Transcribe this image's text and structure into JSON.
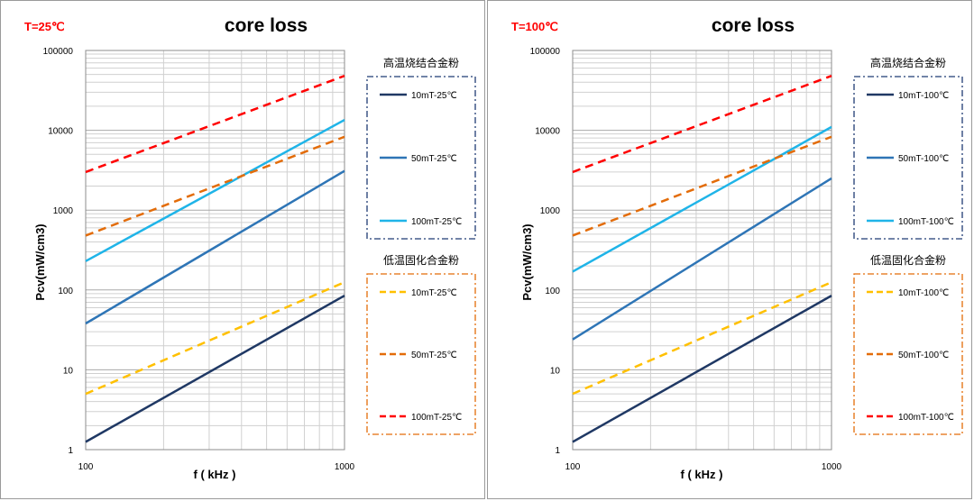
{
  "chart_data": [
    {
      "type": "line",
      "temperature_label": "T=25℃",
      "title": "core loss",
      "xlabel": "f ( kHz )",
      "ylabel": "Pcv(mW/cm3)",
      "xscale": "log",
      "yscale": "log",
      "xlim": [
        100,
        1000
      ],
      "ylim": [
        1,
        100000
      ],
      "x_ticks": [
        "100",
        "1000"
      ],
      "y_ticks": [
        "1",
        "10",
        "100",
        "1000",
        "10000",
        "100000"
      ],
      "grid": true,
      "legend_groups": [
        {
          "title": "高温烧结合金粉",
          "border_color": "#1f3b73",
          "series_indices": [
            0,
            1,
            2
          ]
        },
        {
          "title": "低温固化合金粉",
          "border_color": "#e36c09",
          "series_indices": [
            3,
            4,
            5
          ]
        }
      ],
      "series": [
        {
          "name": "10mT-25℃",
          "color": "#1f3864",
          "dash": "solid",
          "x": [
            100,
            1000
          ],
          "y": [
            1.25,
            85
          ]
        },
        {
          "name": "50mT-25℃",
          "color": "#2e75b6",
          "dash": "solid",
          "x": [
            100,
            1000
          ],
          "y": [
            38,
            3100
          ]
        },
        {
          "name": "100mT-25℃",
          "color": "#1fb4e8",
          "dash": "solid",
          "x": [
            100,
            1000
          ],
          "y": [
            230,
            13500
          ]
        },
        {
          "name": "10mT-25℃",
          "color": "#ffc000",
          "dash": "dashed",
          "x": [
            100,
            1000
          ],
          "y": [
            5,
            125
          ]
        },
        {
          "name": "50mT-25℃",
          "color": "#e36c09",
          "dash": "dashed",
          "x": [
            100,
            1000
          ],
          "y": [
            480,
            8300
          ]
        },
        {
          "name": "100mT-25℃",
          "color": "#ff0000",
          "dash": "dashed",
          "x": [
            100,
            1000
          ],
          "y": [
            3000,
            48000
          ]
        }
      ]
    },
    {
      "type": "line",
      "temperature_label": "T=100℃",
      "title": "core loss",
      "xlabel": "f ( kHz )",
      "ylabel": "Pcv(mW/cm3)",
      "xscale": "log",
      "yscale": "log",
      "xlim": [
        100,
        1000
      ],
      "ylim": [
        1,
        100000
      ],
      "x_ticks": [
        "100",
        "1000"
      ],
      "y_ticks": [
        "1",
        "10",
        "100",
        "1000",
        "10000",
        "100000"
      ],
      "grid": true,
      "legend_groups": [
        {
          "title": "高温烧结合金粉",
          "border_color": "#1f3b73",
          "series_indices": [
            0,
            1,
            2
          ]
        },
        {
          "title": "低温固化合金粉",
          "border_color": "#e36c09",
          "series_indices": [
            3,
            4,
            5
          ]
        }
      ],
      "series": [
        {
          "name": "10mT-100℃",
          "color": "#1f3864",
          "dash": "solid",
          "x": [
            100,
            1000
          ],
          "y": [
            1.25,
            85
          ]
        },
        {
          "name": "50mT-100℃",
          "color": "#2e75b6",
          "dash": "solid",
          "x": [
            100,
            1000
          ],
          "y": [
            24,
            2500
          ]
        },
        {
          "name": "100mT-100℃",
          "color": "#1fb4e8",
          "dash": "solid",
          "x": [
            100,
            1000
          ],
          "y": [
            170,
            11000
          ]
        },
        {
          "name": "10mT-100℃",
          "color": "#ffc000",
          "dash": "dashed",
          "x": [
            100,
            1000
          ],
          "y": [
            5,
            125
          ]
        },
        {
          "name": "50mT-100℃",
          "color": "#e36c09",
          "dash": "dashed",
          "x": [
            100,
            1000
          ],
          "y": [
            480,
            8300
          ]
        },
        {
          "name": "100mT-100℃",
          "color": "#ff0000",
          "dash": "dashed",
          "x": [
            100,
            1000
          ],
          "y": [
            3000,
            48000
          ]
        }
      ]
    }
  ]
}
